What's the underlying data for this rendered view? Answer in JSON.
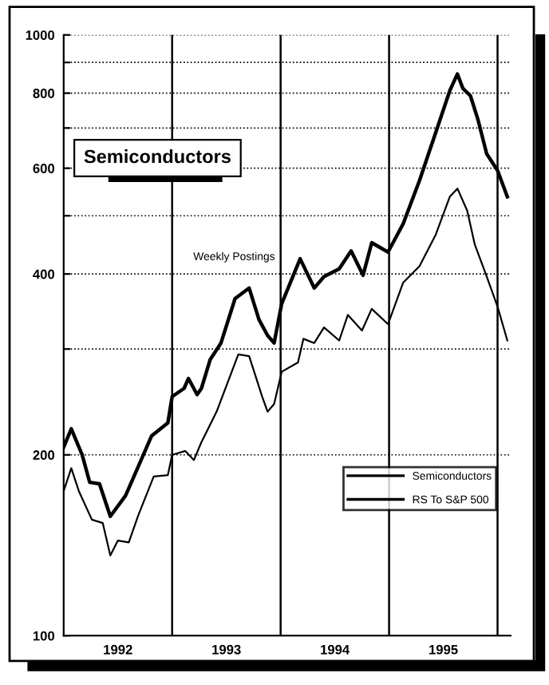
{
  "chart_data": {
    "type": "line",
    "title": "Semiconductors",
    "annotations": [
      "Weekly Postings"
    ],
    "log": "y",
    "ylim": [
      100,
      1000
    ],
    "yticks": [
      100,
      200,
      {
        "value": 300,
        "label": null
      },
      400,
      {
        "value": 500,
        "label": null
      },
      600,
      {
        "value": 700,
        "label": null
      },
      800,
      {
        "value": 900,
        "label": null
      },
      1000
    ],
    "xlim": [
      1992,
      1996.12
    ],
    "xticks": [
      {
        "value": 1992.5,
        "label": "1992"
      },
      {
        "value": 1993.5,
        "label": "1993"
      },
      {
        "value": 1994.5,
        "label": "1994"
      },
      {
        "value": 1995.5,
        "label": "1995"
      }
    ],
    "grid": "y",
    "legend": "bottom right",
    "line_style": "solid",
    "marker": "none",
    "ref_lines": [
      {
        "axis": "x",
        "value": 1993,
        "label": null,
        "line_style": "solid"
      },
      {
        "axis": "x",
        "value": 1994,
        "label": null,
        "line_style": "solid"
      },
      {
        "axis": "x",
        "value": 1995,
        "label": null,
        "line_style": "solid"
      },
      {
        "axis": "x",
        "value": 1996,
        "label": null,
        "line_style": "solid"
      }
    ],
    "series": [
      {
        "name": "Semiconductors",
        "color": "#000000",
        "x": [
          1992.0,
          1992.07,
          1992.17,
          1992.24,
          1992.33,
          1992.43,
          1992.57,
          1992.67,
          1992.81,
          1992.96,
          1993.0,
          1993.11,
          1993.15,
          1993.23,
          1993.27,
          1993.35,
          1993.45,
          1993.58,
          1993.71,
          1993.8,
          1993.88,
          1993.94,
          1994.01,
          1994.18,
          1994.31,
          1994.4,
          1994.54,
          1994.65,
          1994.76,
          1994.84,
          1994.99,
          1995.13,
          1995.28,
          1995.43,
          1995.56,
          1995.63,
          1995.68,
          1995.75,
          1995.82,
          1995.9,
          1996.0,
          1996.09
        ],
        "values": [
          206,
          221,
          200,
          180,
          179,
          158,
          171,
          188,
          215,
          226,
          250,
          258,
          268,
          252,
          258,
          288,
          307,
          364,
          379,
          336,
          316,
          307,
          357,
          424,
          379,
          396,
          408,
          437,
          398,
          451,
          435,
          485,
          572,
          688,
          808,
          861,
          815,
          792,
          722,
          634,
          595,
          538
        ]
      },
      {
        "name": "RS To S&P 500",
        "color": "#000000",
        "x": [
          1992.0,
          1992.07,
          1992.14,
          1992.26,
          1992.36,
          1992.43,
          1992.5,
          1992.6,
          1992.69,
          1992.83,
          1992.96,
          1993.0,
          1993.12,
          1993.2,
          1993.27,
          1993.41,
          1993.61,
          1993.71,
          1993.83,
          1993.88,
          1993.94,
          1994.01,
          1994.16,
          1994.21,
          1994.31,
          1994.4,
          1994.54,
          1994.62,
          1994.75,
          1994.84,
          1994.99,
          1995.13,
          1995.28,
          1995.43,
          1995.56,
          1995.63,
          1995.72,
          1995.79,
          1995.9,
          1996.0,
          1996.09
        ],
        "values": [
          174,
          190,
          174,
          156,
          154,
          136,
          144,
          143,
          159,
          184,
          185,
          200,
          203,
          196,
          210,
          236,
          294,
          292,
          250,
          236,
          243,
          275,
          285,
          312,
          307,
          326,
          310,
          342,
          322,
          350,
          330,
          387,
          412,
          465,
          538,
          555,
          510,
          448,
          396,
          353,
          310
        ]
      }
    ]
  }
}
